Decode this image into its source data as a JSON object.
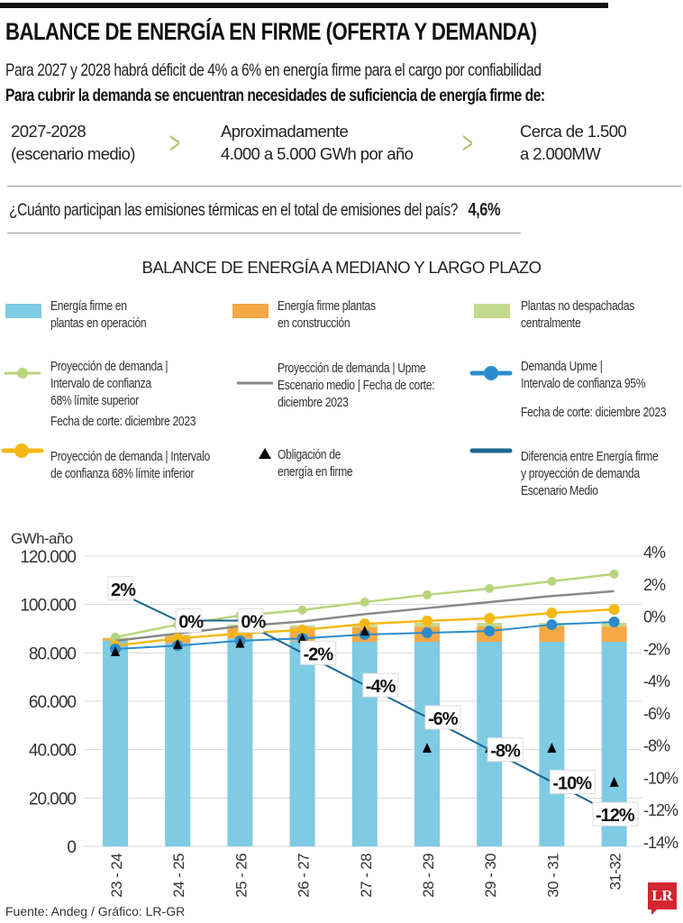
{
  "header": {
    "title": "BALANCE DE ENERGÍA EN FIRME (OFERTA Y DEMANDA)",
    "line1": "Para 2027 y 2028 habrá déficit de 4% a 6% en energía firme para el cargo por confiabilidad",
    "line2": "Para cubrir la demanda se encuentran necesidades de suficiencia de energía firme de:"
  },
  "facts": [
    {
      "l1": "2027-2028",
      "l2": "(escenario medio)"
    },
    {
      "l1": "Aproximadamente",
      "l2": "4.000 a 5.000 GWh por año"
    },
    {
      "l1": "Cerca de 1.500",
      "l2": "a 2.000MW"
    }
  ],
  "question": {
    "text": "¿Cuánto participan las emisiones térmicas en el total de emisiones del país?",
    "value": "4,6%"
  },
  "legend": {
    "operation": {
      "l1": "Energía firme en",
      "l2": "plantas en operación",
      "color": "#7ecbe3"
    },
    "construction": {
      "l1": "Energía firme plantas",
      "l2": "en construcción",
      "color": "#f5a845"
    },
    "non_dispatched": {
      "l1": "Plantas no despachadas",
      "l2": "centralmente",
      "color": "#c3da8e"
    },
    "upper": {
      "l1": "Proyección de demanda |",
      "l2": "Intervalo de confianza",
      "l3": "68% límite superior",
      "l4": "Fecha de corte: diciembre 2023",
      "color": "#b8d47e"
    },
    "medium": {
      "l1": "Proyección de demanda | Upme",
      "l2": "Escenario medio | Fecha de corte:",
      "l3": "diciembre 2023",
      "color": "#888888"
    },
    "upme": {
      "l1": "Demanda Upme |",
      "l2": "Intervalo de confianza 95%",
      "l3": "Fecha de corte: diciembre 2023",
      "color": "#2a8ccc"
    },
    "lower": {
      "l1": "Proyección de demanda | Intervalo",
      "l2": "de confianza 68% límite inferior",
      "color": "#f5b915"
    },
    "obligation": {
      "l1": "Obligación de",
      "l2": "energía en firme",
      "color": "#000000"
    },
    "difference": {
      "l1": "Diferencia entre Energía firme",
      "l2": "y proyección de demanda",
      "l3": "Escenario Medio",
      "color": "#1b6692"
    }
  },
  "chart_data": {
    "type": "bar",
    "title": "BALANCE DE ENERGÍA A MEDIANO Y LARGO PLAZO",
    "ylabel": "GWh-año",
    "ylim": [
      0,
      120000
    ],
    "y2lim": [
      -14,
      4
    ],
    "yticks": [
      "0",
      "20.000",
      "40.000",
      "60.000",
      "80.000",
      "100.000",
      "120.000"
    ],
    "y2ticks": [
      "-14%",
      "-12%",
      "-10%",
      "-8%",
      "-6%",
      "-4%",
      "-2%",
      "0%",
      "2%",
      "4%"
    ],
    "grid": true,
    "categories": [
      "23 - 24",
      "24 - 25",
      "25 - 26",
      "26 - 27",
      "27 - 28",
      "28 - 29",
      "29 - 30",
      "30 - 31",
      "31-32"
    ],
    "stacked_bars": [
      {
        "name": "Energía firme en plantas en operación",
        "values": [
          85000,
          84000,
          86000,
          85000,
          84600,
          84600,
          84600,
          84600,
          84600
        ]
      },
      {
        "name": "Energía firme plantas en construcción",
        "values": [
          1000,
          3000,
          5000,
          5500,
          6000,
          6300,
          6300,
          6300,
          6300
        ]
      },
      {
        "name": "Plantas no despachadas centralmente",
        "values": [
          300,
          500,
          700,
          800,
          1000,
          1500,
          1500,
          1500,
          1500
        ]
      }
    ],
    "lines": [
      {
        "name": "Proyección de demanda | Intervalo de confianza 68% límite superior",
        "values": [
          86500,
          91700,
          95400,
          97700,
          101000,
          104000,
          106600,
          109600,
          112600
        ]
      },
      {
        "name": "Proyección de demanda | Upme Escenario medio",
        "values": [
          85000,
          88000,
          91000,
          93000,
          96000,
          98500,
          101000,
          103500,
          105500
        ]
      },
      {
        "name": "Proyección de demanda | Intervalo de confianza 68% límite inferior",
        "values": [
          83000,
          86000,
          88000,
          89500,
          92000,
          93200,
          94300,
          96500,
          98000
        ]
      },
      {
        "name": "Demanda Upme | Intervalo de confianza 95%",
        "values": [
          81600,
          83000,
          85000,
          86000,
          87600,
          88300,
          89000,
          91700,
          92800
        ]
      }
    ],
    "obligation": {
      "name": "Obligación de energía en firme",
      "values": [
        80500,
        83500,
        84000,
        86000,
        89000,
        40600,
        40600,
        40600,
        26500
      ]
    },
    "difference": {
      "name": "Diferencia entre Energía firme y proyección de demanda Escenario Medio",
      "values": [
        2,
        0,
        0,
        -2,
        -4,
        -6,
        -8,
        -10,
        -12
      ],
      "labels": [
        "2%",
        "0%",
        "0%",
        "-2%",
        "-4%",
        "-6%",
        "-8%",
        "-10%",
        "-12%"
      ]
    }
  },
  "footer": {
    "source": "Fuente: Andeg / Gráfico: LR-GR",
    "logo": "LR"
  }
}
